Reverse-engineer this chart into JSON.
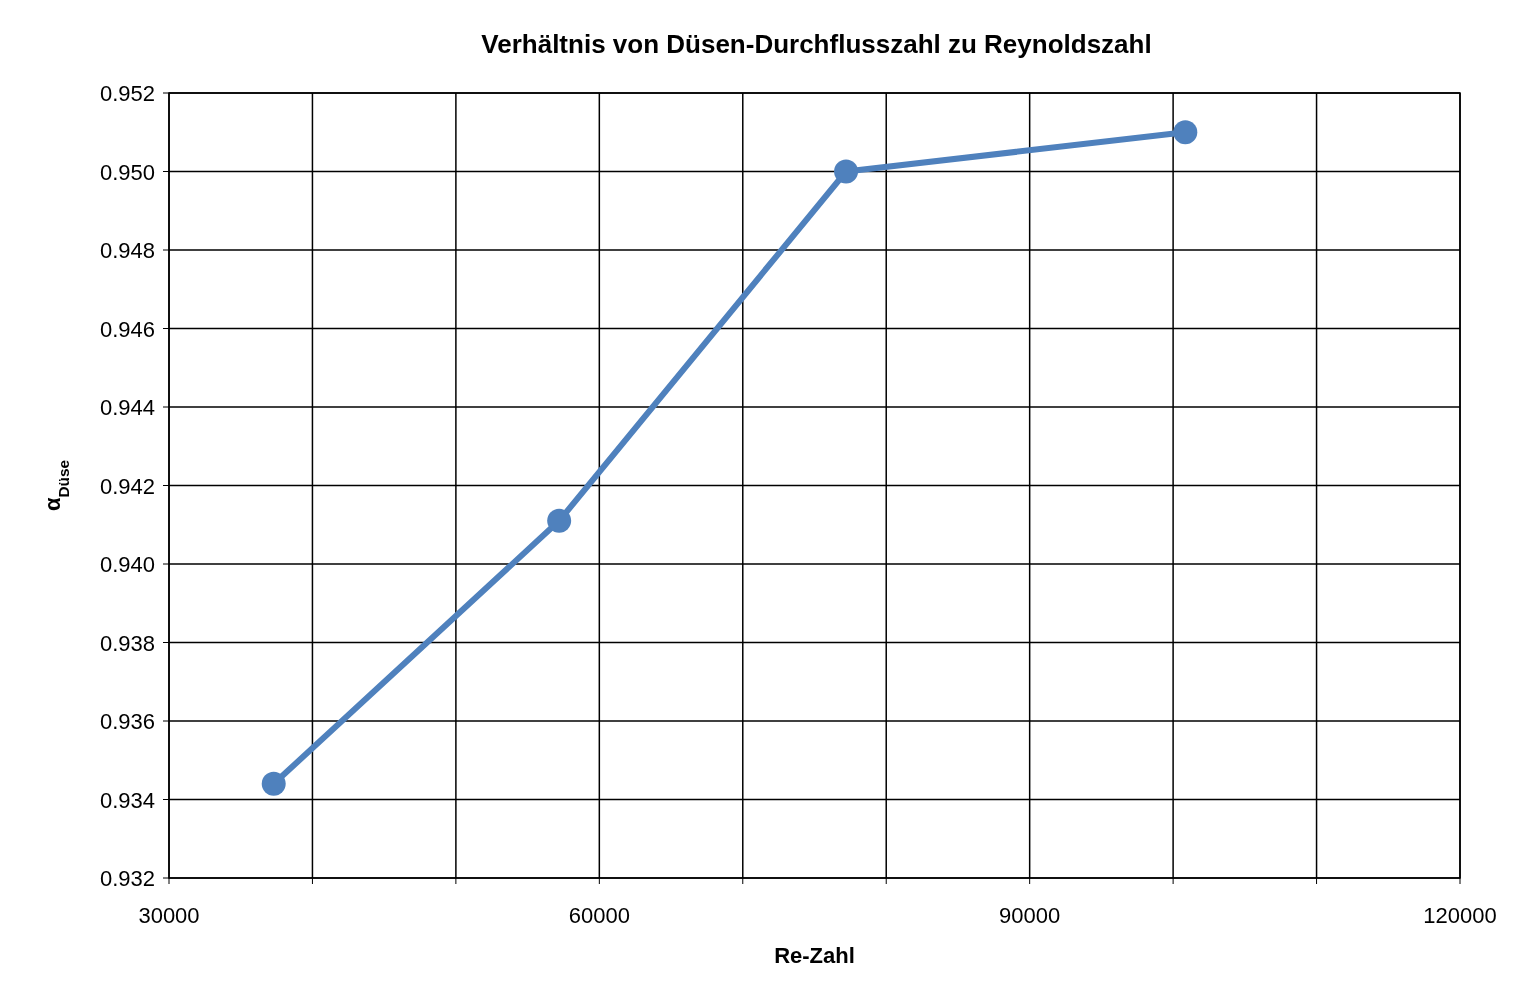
{
  "chart_data": {
    "type": "line",
    "title": "Verhältnis von Düsen-Durchflusszahl zu Reynoldszahl",
    "xlabel": "Re-Zahl",
    "ylabel": "α$_{Düse}$",
    "x": [
      37300,
      57200,
      77200,
      100850
    ],
    "series": [
      {
        "color": "#4f81bd",
        "values": [
          0.9344,
          0.9411,
          0.95,
          0.951
        ]
      }
    ],
    "xlim": [
      30000,
      120000
    ],
    "xticks": [
      30000,
      {
        "value": 40000,
        "label": null
      },
      {
        "value": 50000,
        "label": null
      },
      60000,
      {
        "value": 70000,
        "label": null
      },
      {
        "value": 80000,
        "label": null
      },
      90000,
      {
        "value": 100000,
        "label": null
      },
      {
        "value": 110000,
        "label": null
      },
      120000
    ],
    "ylim": [
      0.932,
      0.952
    ],
    "yticks": [
      {
        "value": 0.932,
        "label": "0.932"
      },
      {
        "value": 0.934,
        "label": "0.934"
      },
      {
        "value": 0.936,
        "label": "0.936"
      },
      {
        "value": 0.938,
        "label": "0.938"
      },
      {
        "value": 0.94,
        "label": "0.940"
      },
      {
        "value": 0.942,
        "label": "0.942"
      },
      {
        "value": 0.944,
        "label": "0.944"
      },
      {
        "value": 0.946,
        "label": "0.946"
      },
      {
        "value": 0.948,
        "label": "0.948"
      },
      {
        "value": 0.95,
        "label": "0.950"
      },
      {
        "value": 0.952,
        "label": "0.952"
      }
    ],
    "grid": true,
    "marker": "circle",
    "line_style": "solid"
  }
}
